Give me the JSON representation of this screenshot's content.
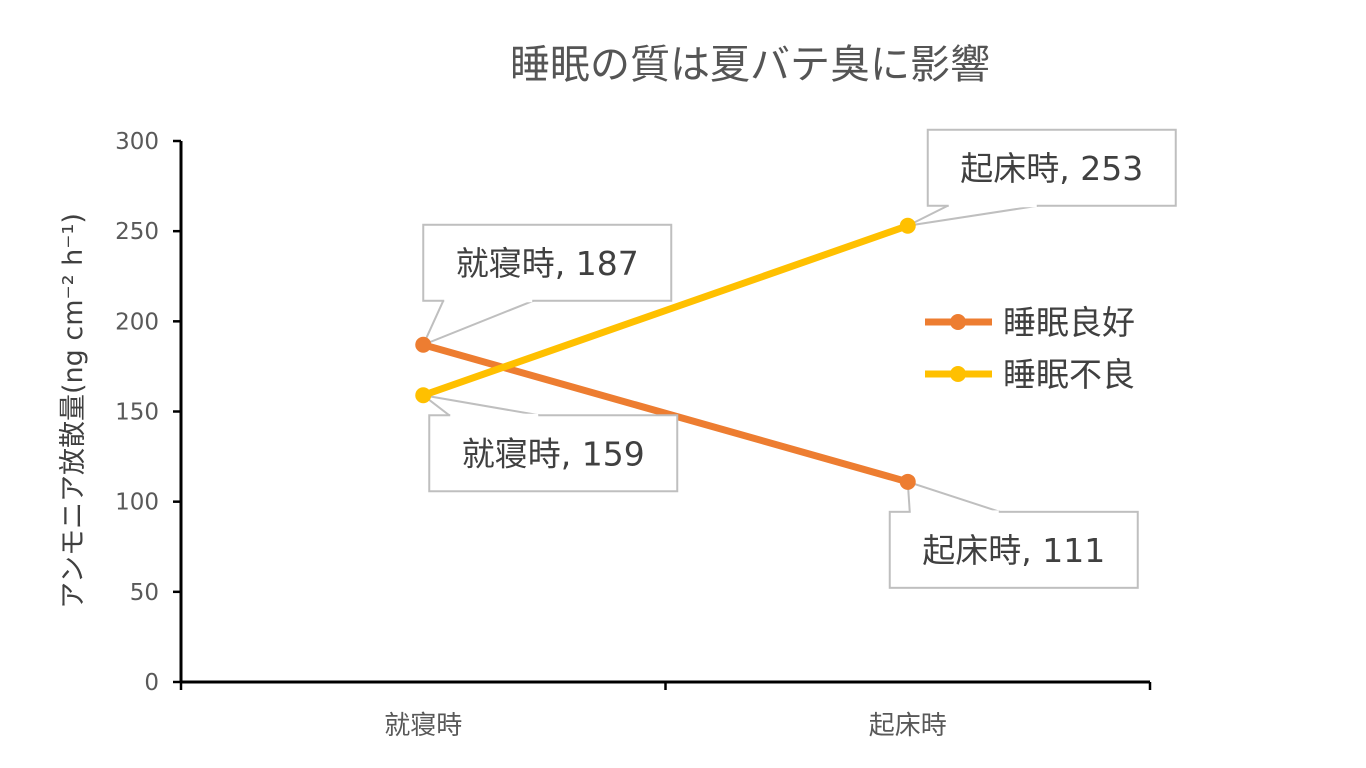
{
  "chart_data": {
    "type": "line",
    "title": "睡眠の質は夏バテ臭に影響",
    "ylabel": "アンモニア放散量(ng cm⁻² h⁻¹)",
    "xlabel": "",
    "categories": [
      "就寝時",
      "起床時"
    ],
    "ylim": [
      0,
      300
    ],
    "yticks": [
      0,
      50,
      100,
      150,
      200,
      250,
      300
    ],
    "grid": false,
    "legend_position": "right",
    "series": [
      {
        "name": "睡眠良好",
        "values": [
          187,
          111
        ],
        "color": "#ED7D31",
        "labels": [
          "就寝時, 187",
          "起床時, 111"
        ]
      },
      {
        "name": "睡眠不良",
        "values": [
          159,
          253
        ],
        "color": "#FFC000",
        "labels": [
          "就寝時, 159",
          "起床時, 253"
        ]
      }
    ]
  }
}
